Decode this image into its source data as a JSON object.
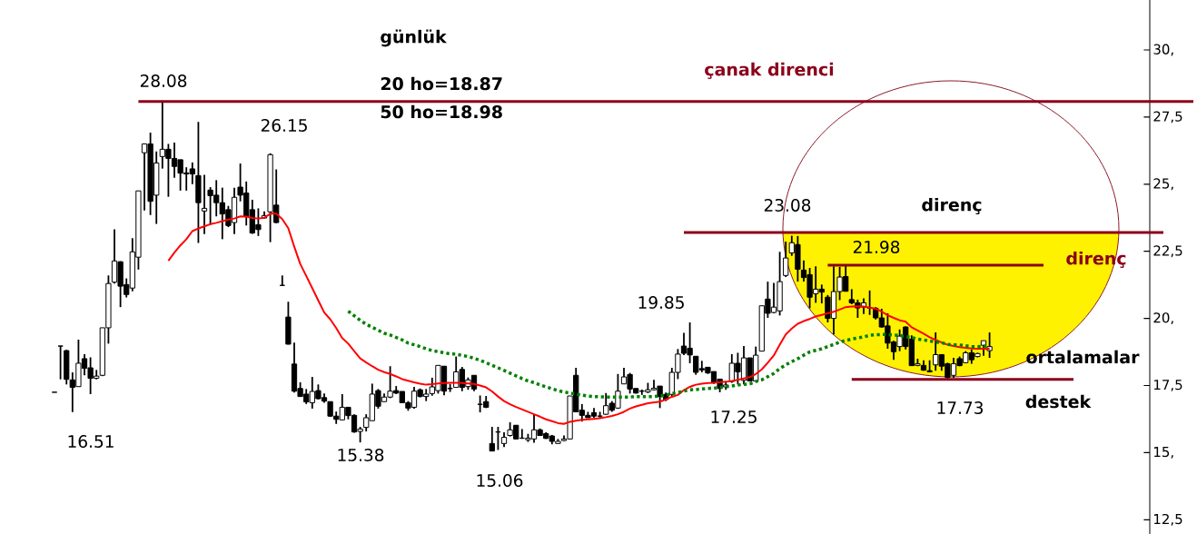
{
  "chart_data": {
    "type": "candlestick",
    "title": "günlük",
    "categories": [
      null,
      null,
      null,
      null,
      null,
      null,
      null,
      null,
      null,
      null,
      null,
      null,
      null,
      null,
      null,
      null,
      null,
      null,
      null,
      null,
      null,
      null,
      null,
      null,
      null,
      null,
      null,
      null,
      null,
      null,
      null,
      null,
      null,
      null,
      null,
      null,
      null,
      null,
      null,
      null,
      null,
      null,
      null,
      null,
      null,
      null,
      null,
      null,
      null,
      null,
      null,
      null,
      null,
      null,
      null,
      null,
      null,
      null,
      null,
      null,
      null,
      null,
      null,
      null,
      null,
      null,
      null,
      null,
      null,
      null,
      null,
      null,
      null,
      null,
      null,
      null,
      null,
      null,
      null,
      null,
      null,
      null,
      null,
      null,
      null,
      null,
      null,
      null,
      null,
      null,
      null,
      null,
      null,
      null,
      null,
      null,
      null,
      null,
      null,
      null,
      null,
      null,
      null,
      null,
      null,
      null,
      null,
      null,
      null,
      null,
      null,
      null,
      null,
      null,
      null,
      null,
      null,
      null,
      null,
      null,
      null,
      null,
      null,
      null,
      null,
      null,
      null,
      null,
      null,
      null,
      null,
      null,
      null,
      null,
      null,
      null,
      null,
      null,
      null,
      null,
      null,
      null,
      null,
      null,
      null,
      null,
      null,
      null,
      null,
      null,
      null,
      null,
      null,
      null,
      null,
      null,
      null,
      null,
      null,
      null,
      null,
      null,
      null,
      null,
      null,
      null,
      null,
      null,
      null,
      null,
      null,
      null,
      null,
      null,
      null,
      null,
      null,
      null,
      null,
      null,
      null,
      null,
      null,
      null,
      null,
      null,
      null,
      null,
      null,
      null,
      null
    ],
    "ohlc": [
      [
        17.25,
        17.25,
        17.25,
        17.25
      ],
      [
        18.97,
        18.97,
        17.73,
        18.97
      ],
      [
        18.8,
        18.83,
        17.54,
        17.73
      ],
      [
        17.71,
        17.99,
        16.51,
        17.43
      ],
      [
        17.46,
        19.21,
        17.46,
        18.33
      ],
      [
        18.5,
        18.67,
        17.88,
        18.14
      ],
      [
        18.16,
        18.55,
        17.18,
        17.77
      ],
      [
        17.77,
        18.08,
        17.73,
        17.85
      ],
      [
        17.88,
        19.65,
        17.85,
        19.65
      ],
      [
        19.65,
        21.6,
        19.06,
        21.3
      ],
      [
        21.35,
        23.32,
        21.3,
        22.14
      ],
      [
        22.11,
        22.13,
        20.42,
        21.2
      ],
      [
        21.26,
        21.49,
        20.78,
        20.89
      ],
      [
        21.13,
        22.99,
        21.01,
        22.48
      ],
      [
        22.28,
        24.75,
        21.82,
        24.75
      ],
      [
        26.17,
        26.5,
        24.02,
        26.5
      ],
      [
        26.5,
        26.92,
        23.85,
        24.36
      ],
      [
        24.59,
        26.22,
        23.52,
        25.79
      ],
      [
        26.03,
        28.08,
        25.58,
        26.3
      ],
      [
        26.3,
        26.5,
        24.53,
        25.96
      ],
      [
        25.96,
        26.55,
        25.24,
        25.66
      ],
      [
        25.91,
        25.91,
        24.76,
        25.41
      ],
      [
        25.42,
        25.63,
        24.76,
        25.38
      ],
      [
        25.57,
        25.81,
        25.0,
        25.38
      ],
      [
        25.32,
        27.32,
        22.81,
        24.31
      ],
      [
        24.0,
        25.35,
        23.14,
        24.1
      ],
      [
        24.78,
        24.89,
        23.48,
        24.57
      ],
      [
        24.59,
        25.15,
        23.8,
        24.31
      ],
      [
        24.31,
        24.87,
        22.95,
        23.89
      ],
      [
        24.05,
        24.19,
        23.4,
        23.46
      ],
      [
        23.57,
        24.87,
        23.14,
        24.51
      ],
      [
        24.89,
        25.77,
        24.36,
        24.59
      ],
      [
        24.67,
        25.1,
        23.46,
        23.8
      ],
      [
        24.05,
        24.42,
        23.15,
        23.18
      ],
      [
        23.49,
        24.1,
        23.07,
        23.31
      ],
      [
        23.74,
        23.99,
        23.72,
        23.83
      ],
      [
        23.97,
        26.15,
        22.84,
        26.1
      ],
      [
        24.22,
        25.55,
        23.55,
        23.57
      ],
      [
        21.23,
        21.6,
        21.23,
        21.23
      ],
      [
        20.05,
        20.62,
        19.03,
        19.04
      ],
      [
        18.3,
        19.1,
        17.24,
        17.29
      ],
      [
        17.39,
        17.62,
        17.09,
        17.09
      ],
      [
        17.18,
        17.37,
        16.81,
        16.89
      ],
      [
        16.86,
        17.82,
        16.64,
        17.28
      ],
      [
        17.31,
        17.54,
        16.98,
        17.01
      ],
      [
        17.05,
        17.2,
        16.86,
        16.92
      ],
      [
        16.9,
        16.9,
        16.33,
        16.36
      ],
      [
        16.36,
        16.53,
        16.07,
        16.24
      ],
      [
        16.22,
        17.18,
        16.22,
        16.69
      ],
      [
        16.69,
        16.69,
        16.24,
        16.38
      ],
      [
        16.39,
        16.43,
        15.74,
        15.77
      ],
      [
        15.79,
        15.96,
        15.38,
        15.88
      ],
      [
        15.94,
        16.43,
        15.79,
        16.3
      ],
      [
        16.19,
        17.57,
        16.19,
        17.18
      ],
      [
        17.31,
        17.37,
        16.64,
        16.73
      ],
      [
        16.9,
        17.2,
        16.9,
        17.07
      ],
      [
        17.07,
        18.22,
        17.03,
        17.29
      ],
      [
        17.31,
        17.48,
        17.18,
        17.22
      ],
      [
        17.28,
        17.28,
        16.86,
        16.86
      ],
      [
        16.86,
        16.92,
        16.56,
        16.66
      ],
      [
        16.69,
        17.45,
        16.64,
        17.29
      ],
      [
        17.34,
        17.39,
        17.06,
        17.09
      ],
      [
        17.09,
        17.37,
        16.92,
        17.18
      ],
      [
        17.2,
        17.79,
        17.12,
        17.45
      ],
      [
        17.31,
        18.25,
        17.2,
        18.25
      ],
      [
        18.22,
        18.22,
        17.14,
        17.29
      ],
      [
        17.39,
        17.56,
        17.26,
        17.39
      ],
      [
        17.43,
        18.58,
        17.43,
        18.01
      ],
      [
        18.1,
        18.19,
        17.29,
        17.43
      ],
      [
        17.46,
        17.8,
        17.34,
        17.71
      ],
      [
        17.88,
        17.88,
        17.29,
        17.37
      ],
      [
        16.8,
        17.13,
        16.5,
        16.8
      ],
      [
        16.9,
        17.11,
        16.66,
        16.69
      ],
      [
        15.34,
        15.96,
        15.06,
        15.06
      ],
      [
        15.77,
        15.96,
        15.1,
        15.77
      ],
      [
        15.34,
        15.76,
        15.21,
        15.57
      ],
      [
        15.64,
        16.13,
        15.6,
        15.85
      ],
      [
        16.02,
        16.02,
        15.49,
        15.51
      ],
      [
        15.54,
        15.88,
        15.51,
        15.54
      ],
      [
        15.48,
        15.7,
        15.4,
        15.54
      ],
      [
        15.51,
        16.41,
        15.37,
        15.85
      ],
      [
        15.85,
        15.9,
        15.62,
        15.64
      ],
      [
        15.71,
        15.76,
        15.51,
        15.53
      ],
      [
        15.62,
        15.66,
        15.31,
        15.42
      ],
      [
        15.34,
        15.51,
        15.34,
        15.42
      ],
      [
        15.45,
        15.64,
        15.43,
        15.51
      ],
      [
        15.51,
        17.11,
        15.51,
        17.11
      ],
      [
        17.88,
        18.16,
        16.52,
        16.52
      ],
      [
        16.58,
        16.81,
        16.16,
        16.39
      ],
      [
        16.39,
        16.52,
        16.3,
        16.3
      ],
      [
        16.49,
        16.66,
        16.3,
        16.36
      ],
      [
        16.36,
        16.52,
        16.3,
        16.36
      ],
      [
        16.43,
        17.22,
        16.41,
        16.75
      ],
      [
        16.84,
        16.92,
        16.52,
        16.58
      ],
      [
        16.66,
        17.93,
        16.63,
        17.29
      ],
      [
        17.56,
        18.16,
        17.56,
        17.82
      ],
      [
        17.91,
        17.97,
        17.2,
        17.37
      ],
      [
        17.39,
        17.39,
        17.2,
        17.22
      ],
      [
        17.29,
        17.35,
        17.15,
        17.29
      ],
      [
        17.26,
        17.6,
        17.22,
        17.34
      ],
      [
        17.34,
        17.71,
        17.31,
        17.4
      ],
      [
        17.48,
        17.48,
        16.66,
        17.09
      ],
      [
        17.17,
        17.24,
        16.92,
        16.98
      ],
      [
        17.17,
        18.16,
        17.09,
        17.99
      ],
      [
        17.99,
        18.86,
        17.74,
        18.67
      ],
      [
        18.97,
        19.46,
        18.63,
        18.7
      ],
      [
        18.89,
        19.85,
        18.33,
        18.64
      ],
      [
        18.59,
        18.59,
        17.9,
        17.99
      ],
      [
        18.13,
        18.42,
        17.99,
        18.08
      ],
      [
        18.18,
        18.18,
        17.93,
        17.97
      ],
      [
        18.02,
        18.02,
        17.56,
        17.6
      ],
      [
        17.74,
        17.74,
        17.25,
        17.39
      ],
      [
        17.45,
        17.65,
        17.34,
        17.52
      ],
      [
        17.65,
        18.67,
        17.6,
        18.33
      ],
      [
        18.33,
        18.72,
        17.54,
        18.01
      ],
      [
        17.69,
        18.97,
        17.54,
        18.53
      ],
      [
        18.53,
        18.53,
        17.65,
        17.67
      ],
      [
        17.67,
        18.95,
        17.65,
        18.63
      ],
      [
        18.78,
        20.47,
        18.78,
        20.47
      ],
      [
        20.72,
        21.37,
        20.02,
        20.19
      ],
      [
        20.22,
        21.32,
        20.19,
        20.42
      ],
      [
        20.28,
        22.48,
        20.11,
        21.37
      ],
      [
        21.6,
        22.86,
        21.54,
        22.25
      ],
      [
        22.44,
        23.08,
        22.33,
        22.82
      ],
      [
        22.75,
        23.07,
        21.37,
        21.83
      ],
      [
        21.8,
        22.16,
        21.37,
        21.52
      ],
      [
        21.63,
        21.88,
        20.38,
        20.79
      ],
      [
        20.92,
        21.94,
        20.58,
        21.09
      ],
      [
        21.09,
        21.26,
        20.56,
        20.98
      ],
      [
        20.79,
        20.87,
        19.85,
        20.0
      ],
      [
        20.0,
        21.94,
        19.4,
        21.0
      ],
      [
        21.0,
        21.92,
        20.68,
        21.54
      ],
      [
        21.56,
        21.98,
        21.0,
        21.01
      ],
      [
        20.7,
        21.09,
        20.53,
        20.58
      ],
      [
        20.58,
        20.7,
        20.02,
        20.39
      ],
      [
        20.42,
        20.75,
        20.16,
        20.58
      ],
      [
        20.39,
        21.04,
        20.13,
        20.39
      ],
      [
        20.38,
        20.42,
        19.96,
        20.02
      ],
      [
        20.02,
        20.36,
        19.66,
        19.68
      ],
      [
        19.72,
        20.19,
        18.87,
        19.08
      ],
      [
        19.12,
        19.17,
        18.46,
        18.76
      ],
      [
        18.95,
        19.59,
        18.78,
        19.34
      ],
      [
        19.68,
        19.7,
        18.84,
        18.95
      ],
      [
        19.23,
        19.37,
        18.24,
        18.24
      ],
      [
        18.25,
        18.5,
        18.22,
        18.31
      ],
      [
        18.25,
        18.44,
        18.05,
        18.07
      ],
      [
        18.05,
        18.44,
        18.01,
        18.01
      ],
      [
        18.27,
        19.48,
        18.05,
        18.65
      ],
      [
        18.65,
        18.67,
        18.05,
        18.22
      ],
      [
        18.31,
        18.35,
        17.73,
        17.8
      ],
      [
        17.88,
        18.53,
        17.79,
        18.31
      ],
      [
        18.5,
        18.58,
        18.22,
        18.24
      ],
      [
        18.35,
        18.78,
        18.33,
        18.72
      ],
      [
        18.72,
        18.84,
        18.31,
        18.46
      ],
      [
        18.58,
        18.72,
        18.55,
        18.69
      ],
      [
        19.0,
        19.17,
        18.61,
        19.17
      ],
      [
        18.8,
        19.48,
        18.53,
        18.95
      ],
      null,
      null,
      null,
      null,
      null,
      null,
      null,
      null,
      null,
      null,
      null,
      null,
      null,
      null,
      null,
      null,
      null,
      null,
      null,
      null,
      null,
      null,
      null,
      null,
      null,
      null,
      null,
      null,
      null,
      null,
      null,
      null,
      null,
      null
    ],
    "series": [
      {
        "type": "line",
        "color": "#ff0000",
        "line_style": "solid",
        "values": [
          null,
          null,
          null,
          null,
          null,
          null,
          null,
          null,
          null,
          null,
          null,
          null,
          null,
          null,
          null,
          null,
          null,
          null,
          null,
          22.15,
          22.45,
          22.72,
          22.95,
          23.25,
          23.35,
          23.43,
          23.51,
          23.56,
          23.62,
          23.68,
          23.72,
          23.8,
          23.79,
          23.74,
          23.72,
          23.75,
          23.9,
          23.9,
          23.7,
          23.36,
          22.67,
          22.03,
          21.58,
          21.13,
          20.67,
          20.22,
          19.97,
          19.64,
          19.27,
          19.06,
          18.78,
          18.51,
          18.36,
          18.22,
          18.09,
          18.0,
          17.93,
          17.84,
          17.74,
          17.68,
          17.62,
          17.57,
          17.53,
          17.55,
          17.58,
          17.59,
          17.6,
          17.6,
          17.59,
          17.58,
          17.56,
          17.5,
          17.43,
          17.28,
          17.09,
          16.92,
          16.8,
          16.7,
          16.61,
          16.52,
          16.43,
          16.34,
          16.24,
          16.17,
          16.1,
          16.07,
          16.15,
          16.19,
          16.22,
          16.24,
          16.26,
          16.28,
          16.32,
          16.37,
          16.43,
          16.52,
          16.64,
          16.72,
          16.78,
          16.84,
          16.87,
          16.9,
          16.98,
          17.08,
          17.15,
          17.33,
          17.45,
          17.53,
          17.57,
          17.59,
          17.6,
          17.62,
          17.64,
          17.67,
          17.71,
          17.76,
          17.81,
          17.93,
          18.1,
          18.35,
          18.62,
          19.02,
          19.4,
          19.62,
          19.8,
          19.9,
          19.98,
          20.07,
          20.13,
          20.19,
          20.25,
          20.33,
          20.42,
          20.44,
          20.45,
          20.44,
          20.4,
          20.36,
          20.25,
          20.12,
          20.02,
          19.93,
          19.88,
          19.67,
          19.55,
          19.43,
          19.3,
          19.2,
          19.1,
          19.02,
          18.97,
          18.93,
          18.9,
          18.88,
          18.87,
          18.87,
          18.87,
          null,
          null,
          null,
          null,
          null,
          null,
          null,
          null,
          null,
          null,
          null,
          null,
          null,
          null,
          null,
          null,
          null,
          null,
          null,
          null,
          null,
          null,
          null,
          null,
          null,
          null,
          null,
          null,
          null,
          null,
          null,
          null,
          null,
          null
        ]
      },
      {
        "type": "line",
        "color": "#008000",
        "line_style": "dotted",
        "values": [
          null,
          null,
          null,
          null,
          null,
          null,
          null,
          null,
          null,
          null,
          null,
          null,
          null,
          null,
          null,
          null,
          null,
          null,
          null,
          null,
          null,
          null,
          null,
          null,
          null,
          null,
          null,
          null,
          null,
          null,
          null,
          null,
          null,
          null,
          null,
          null,
          null,
          null,
          null,
          null,
          null,
          null,
          null,
          null,
          null,
          null,
          null,
          null,
          null,
          20.27,
          20.1,
          19.93,
          19.78,
          19.67,
          19.56,
          19.45,
          19.38,
          19.29,
          19.2,
          19.08,
          19.02,
          18.95,
          18.87,
          18.8,
          18.76,
          18.72,
          18.68,
          18.67,
          18.62,
          18.58,
          18.51,
          18.44,
          18.35,
          18.25,
          18.16,
          18.06,
          17.96,
          17.86,
          17.76,
          17.67,
          17.61,
          17.52,
          17.45,
          17.38,
          17.31,
          17.26,
          17.22,
          17.18,
          17.14,
          17.11,
          17.09,
          17.08,
          17.07,
          17.07,
          17.07,
          17.07,
          17.07,
          17.09,
          17.09,
          17.09,
          17.09,
          17.11,
          17.14,
          17.2,
          17.24,
          17.29,
          17.34,
          17.35,
          17.37,
          17.39,
          17.4,
          17.43,
          17.46,
          17.48,
          17.52,
          17.54,
          17.56,
          17.65,
          17.71,
          17.83,
          17.95,
          18.13,
          18.27,
          18.39,
          18.5,
          18.63,
          18.75,
          18.81,
          18.87,
          18.95,
          19.03,
          19.12,
          19.18,
          19.23,
          19.27,
          19.31,
          19.37,
          19.39,
          19.4,
          19.4,
          19.38,
          19.37,
          19.32,
          19.29,
          19.23,
          19.2,
          19.16,
          19.12,
          19.1,
          19.03,
          19.01,
          19.01,
          18.98,
          18.95,
          18.95,
          18.96,
          18.98,
          null,
          null,
          null,
          null,
          null,
          null,
          null,
          null,
          null,
          null,
          null,
          null,
          null,
          null,
          null,
          null,
          null,
          null,
          null,
          null,
          null,
          null,
          null,
          null,
          null,
          null,
          null,
          null,
          null,
          null,
          null,
          null,
          null,
          null
        ]
      },
      {
        "type": "line",
        "color": "#8b001a",
        "line_style": "solid",
        "values": [
          null,
          null,
          null,
          null,
          null,
          null,
          null,
          null,
          null,
          null,
          null,
          null,
          null,
          null,
          28.08,
          28.08,
          28.08,
          28.08,
          28.08,
          28.08,
          28.08,
          28.08,
          28.08,
          28.08,
          28.08,
          28.08,
          28.08,
          28.08,
          28.08,
          28.08,
          28.08,
          28.08,
          28.08,
          28.08,
          28.08,
          28.08,
          28.08,
          28.08,
          28.08,
          28.08,
          28.08,
          28.08,
          28.08,
          28.08,
          28.08,
          28.08,
          28.08,
          28.08,
          28.08,
          28.08,
          28.08,
          28.08,
          28.08,
          28.08,
          28.08,
          28.08,
          28.08,
          28.08,
          28.08,
          28.08,
          28.08,
          28.08,
          28.08,
          28.08,
          28.08,
          28.08,
          28.08,
          28.08,
          28.08,
          28.08,
          28.08,
          28.08,
          28.08,
          28.08,
          28.08,
          28.08,
          28.08,
          28.08,
          28.08,
          28.08,
          28.08,
          28.08,
          28.08,
          28.08,
          28.08,
          28.08,
          28.08,
          28.08,
          28.08,
          28.08,
          28.08,
          28.08,
          28.08,
          28.08,
          28.08,
          28.08,
          28.08,
          28.08,
          28.08,
          28.08,
          28.08,
          28.08,
          28.08,
          28.08,
          28.08,
          28.08,
          28.08,
          28.08,
          28.08,
          28.08,
          28.08,
          28.08,
          28.08,
          28.08,
          28.08,
          28.08,
          28.08,
          28.08,
          28.08,
          28.08,
          28.08,
          28.08,
          28.08,
          28.08,
          28.08,
          28.08,
          28.08,
          28.08,
          28.08,
          28.08,
          28.08,
          28.08,
          28.08,
          28.08,
          28.08,
          28.08,
          28.08,
          28.08,
          28.08,
          28.08,
          28.08,
          28.08,
          28.08,
          28.08,
          28.08,
          28.08,
          28.08,
          28.08,
          28.08,
          28.08,
          28.08,
          28.08,
          28.08,
          28.08,
          28.08,
          28.08,
          28.08,
          28.08,
          28.08,
          28.08,
          28.08,
          28.08,
          28.08,
          28.08,
          28.08,
          28.08,
          28.08,
          28.08,
          28.08,
          28.08,
          28.08,
          28.08,
          28.08,
          28.08,
          28.08,
          28.08,
          28.08,
          28.08,
          28.08,
          28.08,
          28.08,
          28.08,
          28.08,
          28.08,
          28.08,
          28.08,
          28.08,
          28.08,
          28.08,
          28.08,
          28.08
        ]
      },
      {
        "type": "line",
        "color": "#8b001a",
        "line_style": "solid",
        "values": [
          null,
          null,
          null,
          null,
          null,
          null,
          null,
          null,
          null,
          null,
          null,
          null,
          null,
          null,
          null,
          null,
          null,
          null,
          null,
          null,
          null,
          null,
          null,
          null,
          null,
          null,
          null,
          null,
          null,
          null,
          null,
          null,
          null,
          null,
          null,
          null,
          null,
          null,
          null,
          null,
          null,
          null,
          null,
          null,
          null,
          null,
          null,
          null,
          null,
          null,
          null,
          null,
          null,
          null,
          null,
          null,
          null,
          null,
          null,
          null,
          null,
          null,
          null,
          null,
          null,
          null,
          null,
          null,
          null,
          null,
          null,
          null,
          null,
          null,
          null,
          null,
          null,
          null,
          null,
          null,
          null,
          null,
          null,
          null,
          null,
          null,
          null,
          null,
          null,
          null,
          null,
          null,
          null,
          null,
          null,
          null,
          null,
          null,
          null,
          null,
          null,
          null,
          null,
          null,
          null,
          23.2,
          23.2,
          23.2,
          23.2,
          23.2,
          23.2,
          23.2,
          23.2,
          23.2,
          23.2,
          23.2,
          23.2,
          23.2,
          23.2,
          23.2,
          23.2,
          23.2,
          23.2,
          23.2,
          23.2,
          23.2,
          23.2,
          23.2,
          23.2,
          23.2,
          23.2,
          23.2,
          23.2,
          23.2,
          23.2,
          23.2,
          23.2,
          23.2,
          23.2,
          23.2,
          23.2,
          23.2,
          23.2,
          23.2,
          23.2,
          23.2,
          23.2,
          23.2,
          23.2,
          23.2,
          23.2,
          23.2,
          23.2,
          23.2,
          23.2,
          23.2,
          23.2,
          23.2,
          23.2,
          23.2,
          23.2,
          23.2,
          23.2,
          23.2,
          23.2,
          23.2,
          23.2,
          23.2,
          23.2,
          23.2,
          23.2,
          23.2,
          23.2,
          23.2,
          23.2,
          23.2,
          23.2,
          23.2,
          23.2,
          23.2,
          23.2,
          23.2,
          23.2,
          23.2,
          23.2,
          23.2,
          null,
          null,
          null,
          null,
          null
        ]
      },
      {
        "type": "line",
        "color": "#8b001a",
        "line_style": "solid",
        "values": [
          null,
          null,
          null,
          null,
          null,
          null,
          null,
          null,
          null,
          null,
          null,
          null,
          null,
          null,
          null,
          null,
          null,
          null,
          null,
          null,
          null,
          null,
          null,
          null,
          null,
          null,
          null,
          null,
          null,
          null,
          null,
          null,
          null,
          null,
          null,
          null,
          null,
          null,
          null,
          null,
          null,
          null,
          null,
          null,
          null,
          null,
          null,
          null,
          null,
          null,
          null,
          null,
          null,
          null,
          null,
          null,
          null,
          null,
          null,
          null,
          null,
          null,
          null,
          null,
          null,
          null,
          null,
          null,
          null,
          null,
          null,
          null,
          null,
          null,
          null,
          null,
          null,
          null,
          null,
          null,
          null,
          null,
          null,
          null,
          null,
          null,
          null,
          null,
          null,
          null,
          null,
          null,
          null,
          null,
          null,
          null,
          null,
          null,
          null,
          null,
          null,
          null,
          null,
          null,
          null,
          null,
          null,
          null,
          null,
          null,
          null,
          null,
          null,
          null,
          null,
          null,
          null,
          null,
          null,
          null,
          null,
          null,
          null,
          null,
          null,
          null,
          null,
          null,
          null,
          21.98,
          21.98,
          21.98,
          21.98,
          21.98,
          21.98,
          21.98,
          21.98,
          21.98,
          21.98,
          21.98,
          21.98,
          21.98,
          21.98,
          21.98,
          21.98,
          21.98,
          21.98,
          21.98,
          21.98,
          21.98,
          21.98,
          21.98,
          21.98,
          21.98,
          21.98,
          21.98,
          21.98,
          21.98,
          21.98,
          21.98,
          21.98,
          21.98,
          21.98,
          21.98,
          21.98,
          21.98,
          null,
          null,
          null,
          null,
          null,
          null,
          null,
          null,
          null,
          null,
          null,
          null,
          null,
          null,
          null,
          null,
          null,
          null,
          null,
          null,
          null,
          null,
          null,
          null,
          null
        ]
      },
      {
        "type": "line",
        "color": "#8b001a",
        "line_style": "solid",
        "values": [
          null,
          null,
          null,
          null,
          null,
          null,
          null,
          null,
          null,
          null,
          null,
          null,
          null,
          null,
          null,
          null,
          null,
          null,
          null,
          null,
          null,
          null,
          null,
          null,
          null,
          null,
          null,
          null,
          null,
          null,
          null,
          null,
          null,
          null,
          null,
          null,
          null,
          null,
          null,
          null,
          null,
          null,
          null,
          null,
          null,
          null,
          null,
          null,
          null,
          null,
          null,
          null,
          null,
          null,
          null,
          null,
          null,
          null,
          null,
          null,
          null,
          null,
          null,
          null,
          null,
          null,
          null,
          null,
          null,
          null,
          null,
          null,
          null,
          null,
          null,
          null,
          null,
          null,
          null,
          null,
          null,
          null,
          null,
          null,
          null,
          null,
          null,
          null,
          null,
          null,
          null,
          null,
          null,
          null,
          null,
          null,
          null,
          null,
          null,
          null,
          null,
          null,
          null,
          null,
          null,
          null,
          null,
          null,
          null,
          null,
          null,
          null,
          null,
          null,
          null,
          null,
          null,
          null,
          null,
          null,
          null,
          null,
          null,
          null,
          null,
          null,
          null,
          null,
          null,
          null,
          null,
          null,
          null,
          17.73,
          17.73,
          17.73,
          17.73,
          17.73,
          17.73,
          17.73,
          17.73,
          17.73,
          17.73,
          17.73,
          17.73,
          17.73,
          17.73,
          17.73,
          17.73,
          17.73,
          17.73,
          17.73,
          17.73,
          17.73,
          17.73,
          17.73,
          17.73,
          17.73,
          17.73,
          17.73,
          17.73,
          17.73,
          17.73,
          17.73,
          17.73,
          17.73,
          17.73,
          17.73,
          17.73,
          17.73,
          17.73,
          null,
          null,
          null,
          null,
          null,
          null,
          null,
          null,
          null,
          null,
          null,
          null,
          null,
          null,
          null,
          null,
          null,
          null,
          null,
          null
        ]
      }
    ],
    "annotations": [
      "20 ho=18.87",
      "50 ho=18.98",
      {
        "text": "çanak direnci",
        "y": 28.08
      },
      {
        "text": "28.08",
        "y": 28.08
      },
      "26.15",
      "16.51",
      {
        "text": "15.38",
        "y": 15.38
      },
      {
        "text": "15.06",
        "y": 15.06
      },
      "19.85",
      "17.25",
      {
        "text": "23.08",
        "y": 23.08
      },
      {
        "text": "direnç",
        "y": 23.2
      },
      {
        "text": "21.98",
        "y": 21.98
      },
      "direnç",
      "ortalamalar",
      {
        "text": "destek",
        "y": 17.73
      },
      {
        "text": "17.73",
        "y": 17.73
      }
    ],
    "ylim": [
      11.97,
      31.86
    ],
    "yticks": [
      {
        "value": 30,
        "label": "30,"
      },
      {
        "value": 27.5,
        "label": "27,5"
      },
      {
        "value": 25,
        "label": "25,"
      },
      {
        "value": 22.5,
        "label": "22,5"
      },
      {
        "value": 20,
        "label": "20,"
      },
      {
        "value": 17.5,
        "label": "17,5"
      },
      {
        "value": 15,
        "label": "15,"
      },
      {
        "value": 12.5,
        "label": "12,5"
      }
    ],
    "tick_labels": "y"
  }
}
